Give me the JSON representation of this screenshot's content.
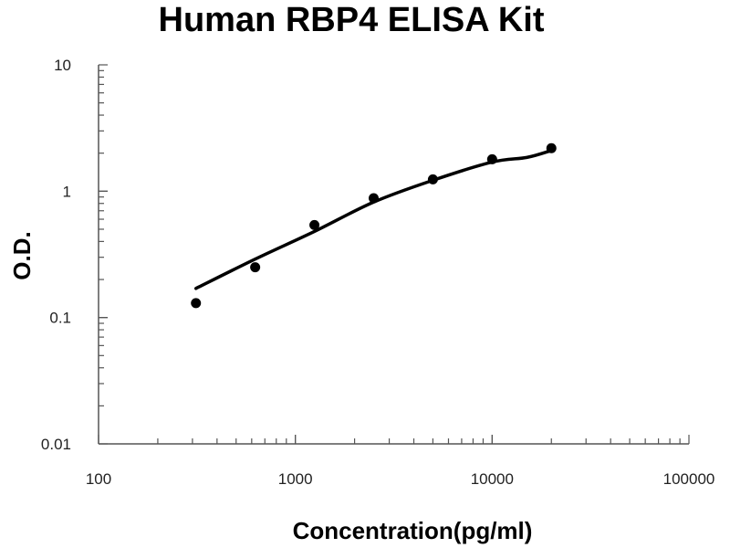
{
  "chart_data": {
    "type": "scatter",
    "title": "Human RBP4 ELISA Kit",
    "xlabel": "Concentration(pg/ml)",
    "ylabel": "O.D.",
    "x_scale": "log",
    "y_scale": "log",
    "xlim": [
      100,
      100000
    ],
    "ylim": [
      0.01,
      10
    ],
    "x_ticks": [
      "100",
      "1000",
      "10000",
      "100000"
    ],
    "y_ticks": [
      "10",
      "1",
      "0.1",
      "0.01"
    ],
    "grid": false,
    "legend": "none",
    "series": [
      {
        "type": "scatter",
        "x": [
          312.5,
          625,
          1250,
          2500,
          5000,
          10000,
          20000
        ],
        "y": [
          0.13,
          0.25,
          0.54,
          0.88,
          1.24,
          1.79,
          2.19
        ]
      },
      {
        "type": "line",
        "x": [
          312.5,
          625,
          1250,
          2500,
          5000,
          10000,
          15000,
          20000
        ],
        "y": [
          0.17,
          0.29,
          0.48,
          0.82,
          1.22,
          1.7,
          1.85,
          2.1
        ]
      }
    ],
    "colors": {
      "points": "#000000",
      "line": "#000000",
      "axis": "#555555"
    }
  }
}
